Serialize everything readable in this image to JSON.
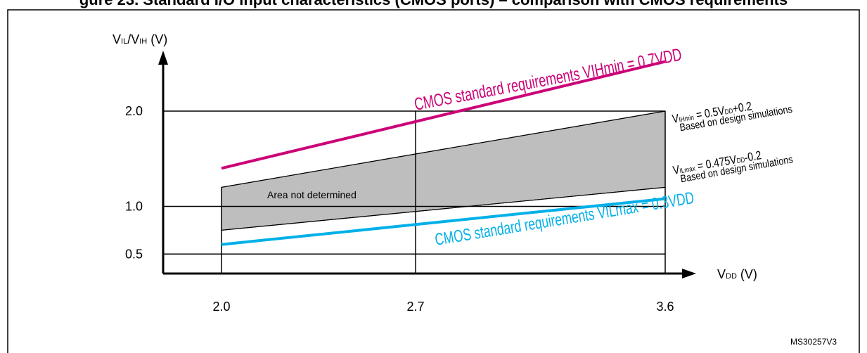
{
  "title": "gure 23. Standard I/O input characteristics (CMOS ports) – comparison with CMOS requirements",
  "figure_id": "MS30257V3",
  "colors": {
    "magenta": "#CC0077",
    "cyan": "#00B0E8",
    "band": "#BEBEBE",
    "frame": "#000000"
  },
  "chart_data": {
    "type": "line",
    "xlabel_main": "V",
    "xlabel_sub": "DD",
    "xlabel_unit": " (V)",
    "ylabel_parts": [
      "V",
      "IL",
      "/V",
      "IH",
      " (V)"
    ],
    "x_ticks": [
      "2.0",
      "2.7",
      "3.6"
    ],
    "x_tick_values": [
      2.0,
      2.7,
      3.6
    ],
    "y_ticks": [
      "2.0",
      "1.0",
      "0.5"
    ],
    "y_tick_values": [
      2.0,
      1.0,
      0.5
    ],
    "series": [
      {
        "name": "CMOS standard requirements VIHmin = 0.7VDD",
        "x": [
          2.0,
          3.6
        ],
        "y": [
          1.4,
          2.52
        ],
        "color": "#CC0077"
      },
      {
        "name": "CMOS standard  requirements VILmax = 0.3VDD",
        "x": [
          2.0,
          3.6
        ],
        "y": [
          0.6,
          1.08
        ],
        "color": "#00B0E8"
      },
      {
        "name": "VIHmin = 0.5VDD+0.2",
        "x": [
          2.0,
          3.6
        ],
        "y": [
          1.2,
          2.0
        ],
        "color": "#000000"
      },
      {
        "name": "VILmax = 0.475VDD-0.2",
        "x": [
          2.0,
          3.6
        ],
        "y": [
          0.75,
          1.51
        ],
        "color": "#000000"
      }
    ],
    "annotations": {
      "area": "Area not determined",
      "vih_formula": {
        "v": "V",
        "sub": "IHmin",
        "rest": " = 0.5V",
        "sub2": "DD",
        "rest2": "+0.2"
      },
      "vil_formula": {
        "v": "V",
        "sub": "ILmax",
        "rest": " = 0.475V",
        "sub2": "DD",
        "rest2": "-0.2"
      },
      "based": "Based on design simulations",
      "cmos_vih": "CMOS standard requirements VIHmin = 0.7VDD",
      "cmos_vil": "CMOS standard  requirements VILmax = 0.3VDD"
    }
  }
}
